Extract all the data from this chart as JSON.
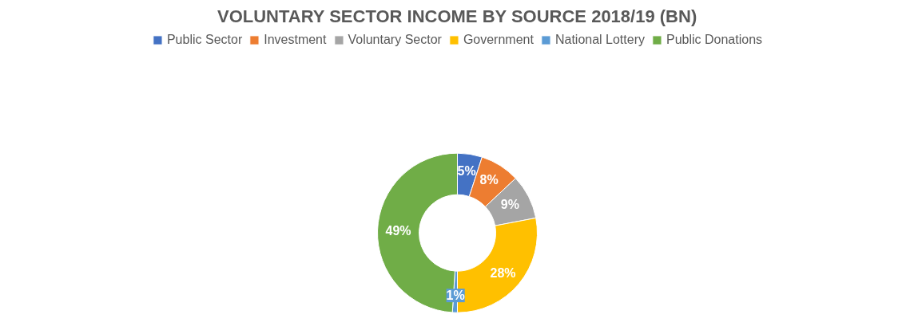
{
  "chart_data": {
    "type": "donut",
    "title": "VOLUNTARY SECTOR INCOME BY SOURCE 2018/19 (BN)",
    "categories": [
      "Public Sector",
      "Investment",
      "Voluntary Sector",
      "Government",
      "National Lottery",
      "Public Donations"
    ],
    "values": [
      5,
      8,
      9,
      28,
      1,
      49
    ],
    "colors": [
      "#4472c4",
      "#ed7d31",
      "#a5a5a5",
      "#ffc000",
      "#5b9bd5",
      "#70ad47"
    ],
    "value_labels": [
      "5%",
      "8%",
      "9%",
      "28%",
      "1%",
      "49%"
    ],
    "legend": "top"
  }
}
